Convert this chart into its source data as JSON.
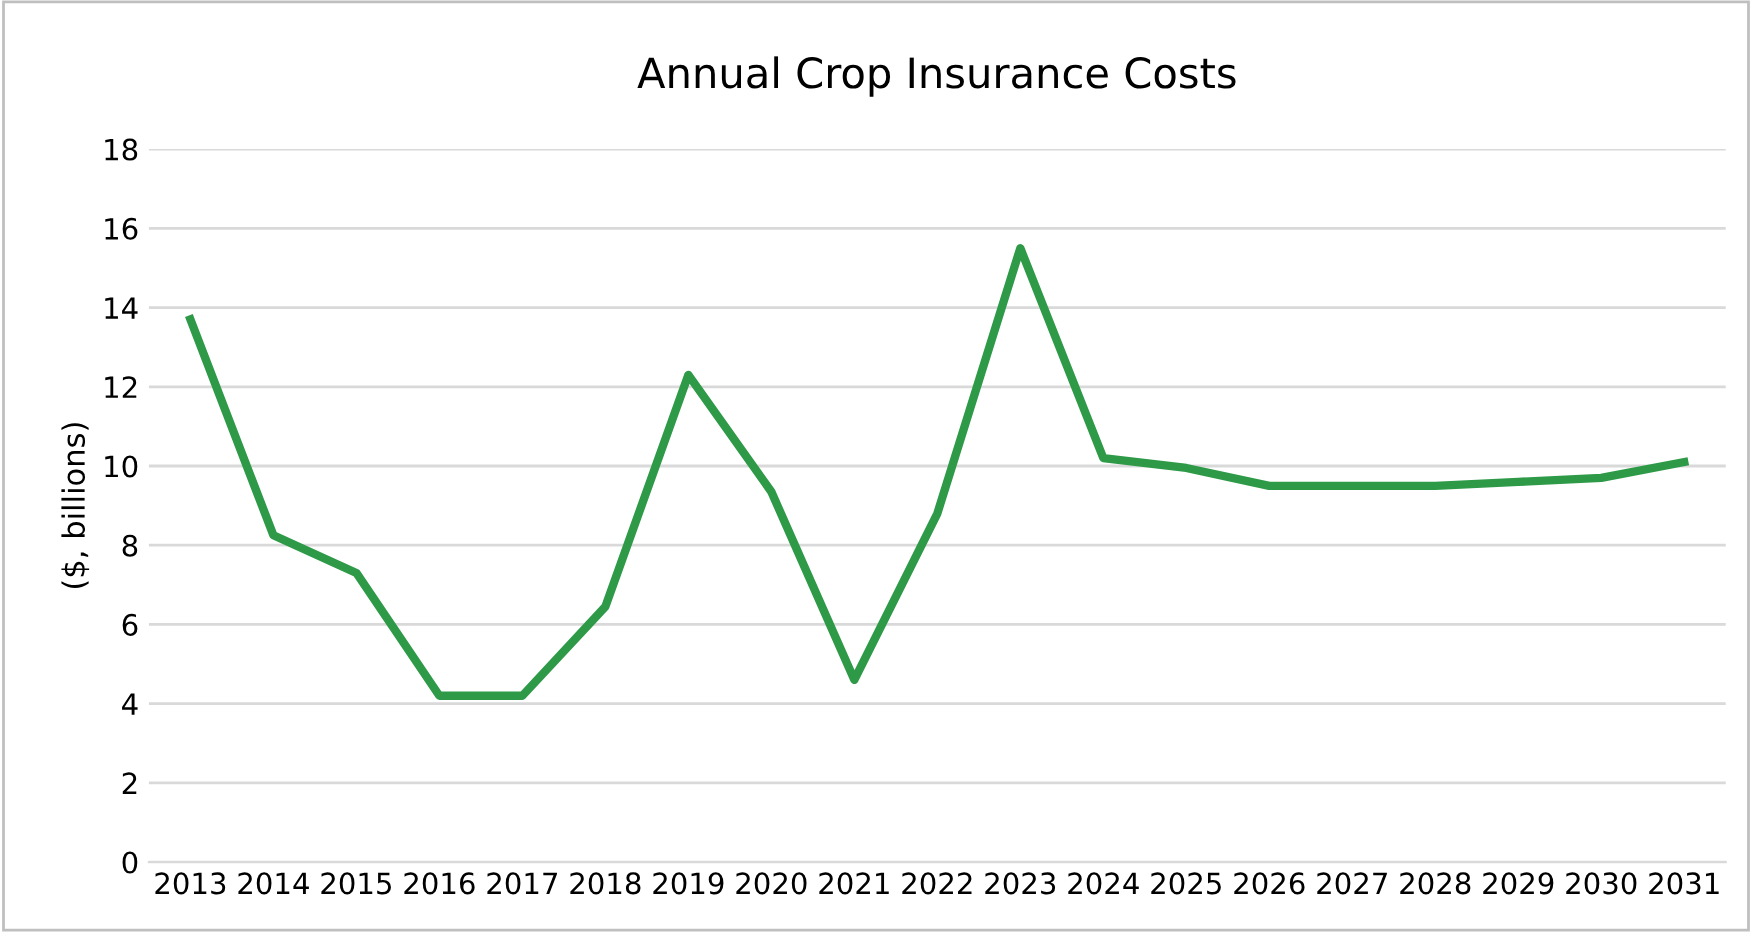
{
  "chart_data": {
    "type": "line",
    "title": "Annual Crop Insurance Costs",
    "ylabel": "($, billions)",
    "categories": [
      "2013",
      "2014",
      "2015",
      "2016",
      "2017",
      "2018",
      "2019",
      "2020",
      "2021",
      "2022",
      "2023",
      "2024",
      "2025",
      "2026",
      "2027",
      "2028",
      "2029",
      "2030",
      "2031"
    ],
    "series": [
      {
        "color": "#2e9a48",
        "values": [
          13.7,
          8.25,
          7.3,
          4.2,
          4.2,
          6.45,
          12.3,
          9.35,
          4.6,
          8.8,
          15.5,
          10.2,
          9.95,
          9.5,
          9.5,
          9.5,
          9.6,
          9.7,
          10.1
        ]
      }
    ],
    "ylim": [
      0,
      18
    ],
    "yticks": [
      0,
      2,
      4,
      6,
      8,
      10,
      12,
      14,
      16,
      18
    ],
    "grid": "y",
    "legend": false,
    "marker": "none",
    "line_style": "solid"
  }
}
